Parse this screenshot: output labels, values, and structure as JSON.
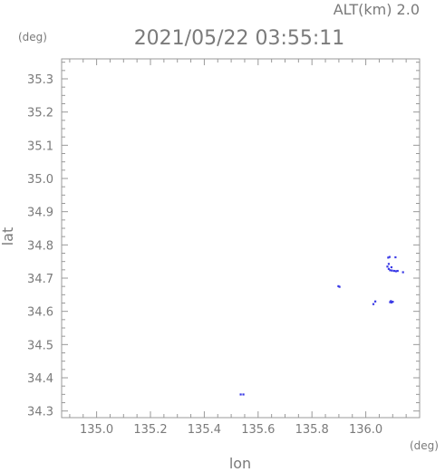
{
  "header": {
    "alt_label": "ALT(km) 2.0",
    "datetime": "2021/05/22 03:55:11",
    "y_unit": "(deg)",
    "x_unit": "(deg)"
  },
  "chart_data": {
    "type": "scatter",
    "title": "2021/05/22 03:55:11",
    "subtitle": "ALT(km) 2.0",
    "xlabel": "lon",
    "ylabel": "lat",
    "xlim": [
      134.87,
      136.2
    ],
    "ylim": [
      34.28,
      35.36
    ],
    "xticks": [
      "135.0",
      "135.2",
      "135.4",
      "135.6",
      "135.8",
      "136.0"
    ],
    "xtick_values": [
      135.0,
      135.2,
      135.4,
      135.6,
      135.8,
      136.0
    ],
    "yticks": [
      "34.3",
      "34.4",
      "34.5",
      "34.6",
      "34.7",
      "34.8",
      "34.9",
      "35.0",
      "35.1",
      "35.2",
      "35.3"
    ],
    "ytick_values": [
      34.3,
      34.4,
      34.5,
      34.6,
      34.7,
      34.8,
      34.9,
      35.0,
      35.1,
      35.2,
      35.3
    ],
    "grid": false,
    "point_color": "#3a3ae6",
    "points": [
      {
        "x": 135.535,
        "y": 34.35
      },
      {
        "x": 135.545,
        "y": 34.35
      },
      {
        "x": 135.898,
        "y": 34.676
      },
      {
        "x": 135.902,
        "y": 34.674
      },
      {
        "x": 136.028,
        "y": 34.622
      },
      {
        "x": 136.035,
        "y": 34.63
      },
      {
        "x": 136.09,
        "y": 34.628
      },
      {
        "x": 136.095,
        "y": 34.627
      },
      {
        "x": 136.1,
        "y": 34.629
      },
      {
        "x": 136.093,
        "y": 34.631
      },
      {
        "x": 136.083,
        "y": 34.762
      },
      {
        "x": 136.088,
        "y": 34.764
      },
      {
        "x": 136.11,
        "y": 34.763
      },
      {
        "x": 136.085,
        "y": 34.743
      },
      {
        "x": 136.08,
        "y": 34.735
      },
      {
        "x": 136.085,
        "y": 34.728
      },
      {
        "x": 136.09,
        "y": 34.724
      },
      {
        "x": 136.097,
        "y": 34.723
      },
      {
        "x": 136.105,
        "y": 34.722
      },
      {
        "x": 136.112,
        "y": 34.721
      },
      {
        "x": 136.118,
        "y": 34.722
      },
      {
        "x": 136.138,
        "y": 34.718
      },
      {
        "x": 136.095,
        "y": 34.733
      }
    ]
  }
}
